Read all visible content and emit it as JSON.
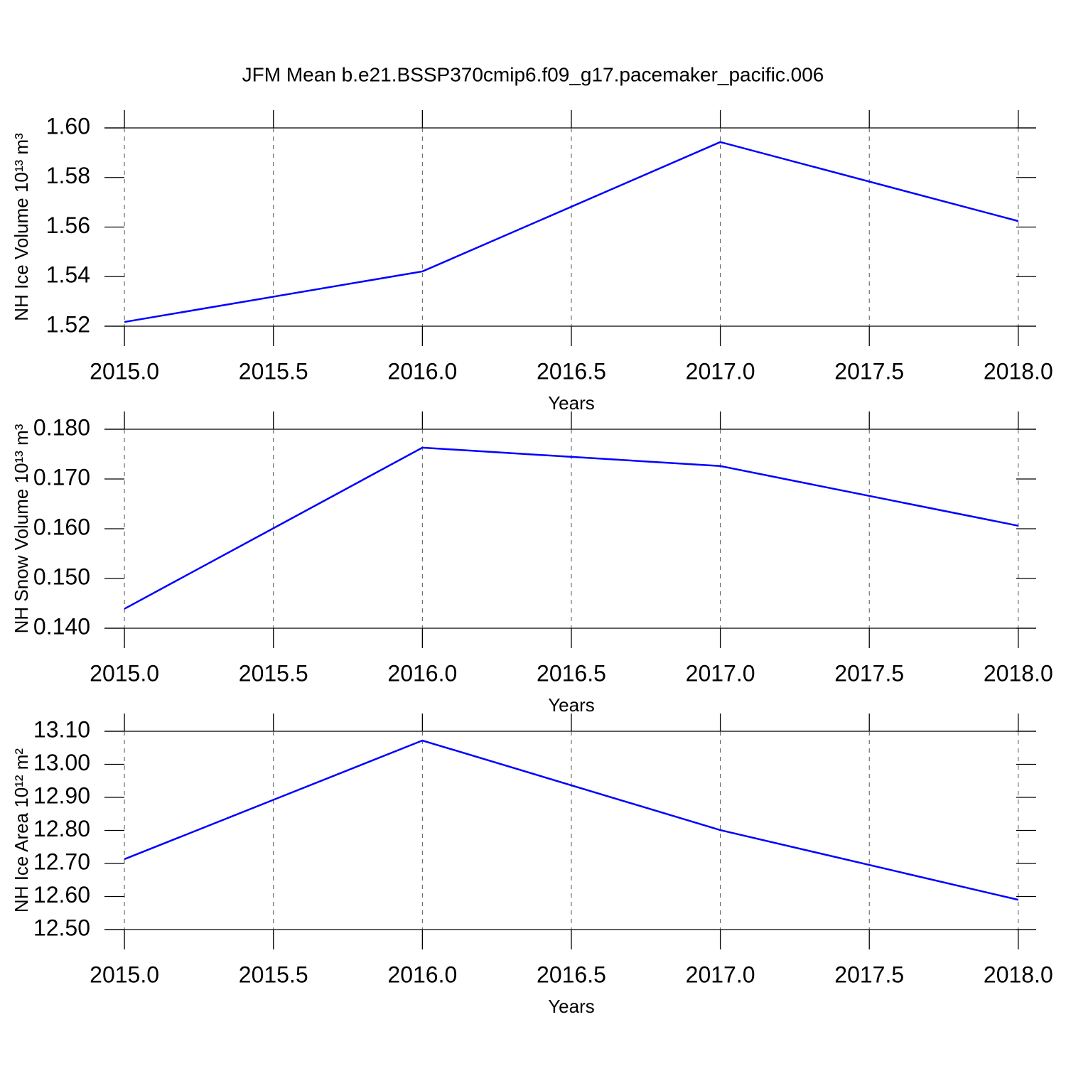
{
  "title": "JFM Mean b.e21.BSSP370cmip6.f09_g17.pacemaker_pacific.006",
  "chart_data": [
    {
      "type": "line",
      "x_label": "Years",
      "y_label": "NH Ice Volume 10¹³ m³",
      "x": [
        2015,
        2016,
        2017,
        2018
      ],
      "values": [
        1.5217,
        1.5421,
        1.5943,
        1.5624
      ],
      "color": "#0000ff",
      "xlim": [
        2014.933,
        2018.06
      ],
      "xticks": [
        {
          "value": 2015,
          "label": "2015.0"
        },
        {
          "value": 2015.5,
          "label": "2015.5"
        },
        {
          "value": 2016,
          "label": "2016.0"
        },
        {
          "value": 2016.5,
          "label": "2016.5"
        },
        {
          "value": 2017,
          "label": "2017.0"
        },
        {
          "value": 2017.5,
          "label": "2017.5"
        },
        {
          "value": 2018,
          "label": "2018.0"
        }
      ],
      "ylim": [
        1.52,
        1.6
      ],
      "yticks": [
        1.52,
        1.54,
        1.56,
        1.58,
        {
          "value": 1.6,
          "label": "1.60"
        }
      ],
      "xgrid": true
    },
    {
      "type": "line",
      "x_label": "Years",
      "y_label": "NH Snow Volume 10¹³ m³",
      "x": [
        2015,
        2016,
        2017,
        2018
      ],
      "values": [
        0.1439,
        0.1763,
        0.1726,
        0.1606
      ],
      "color": "#0000ff",
      "xlim": [
        2014.933,
        2018.06
      ],
      "xticks": [
        {
          "value": 2015,
          "label": "2015.0"
        },
        {
          "value": 2015.5,
          "label": "2015.5"
        },
        {
          "value": 2016,
          "label": "2016.0"
        },
        {
          "value": 2016.5,
          "label": "2016.5"
        },
        {
          "value": 2017,
          "label": "2017.0"
        },
        {
          "value": 2017.5,
          "label": "2017.5"
        },
        {
          "value": 2018,
          "label": "2018.0"
        }
      ],
      "ylim": [
        0.14,
        0.18
      ],
      "yticks": [
        {
          "value": 0.14,
          "label": "0.140"
        },
        {
          "value": 0.15,
          "label": "0.150"
        },
        {
          "value": 0.16,
          "label": "0.160"
        },
        {
          "value": 0.17,
          "label": "0.170"
        },
        {
          "value": 0.18,
          "label": "0.180"
        }
      ],
      "xgrid": true
    },
    {
      "type": "line",
      "x_label": "Years",
      "y_label": "NH Ice Area 10¹² m²",
      "x": [
        2015,
        2016,
        2017,
        2018
      ],
      "values": [
        12.713,
        13.072,
        12.801,
        12.59
      ],
      "color": "#0000ff",
      "xlim": [
        2014.933,
        2018.06
      ],
      "xticks": [
        {
          "value": 2015,
          "label": "2015.0"
        },
        {
          "value": 2015.5,
          "label": "2015.5"
        },
        {
          "value": 2016,
          "label": "2016.0"
        },
        {
          "value": 2016.5,
          "label": "2016.5"
        },
        {
          "value": 2017,
          "label": "2017.0"
        },
        {
          "value": 2017.5,
          "label": "2017.5"
        },
        {
          "value": 2018,
          "label": "2018.0"
        }
      ],
      "ylim": [
        12.5,
        13.1
      ],
      "yticks": [
        {
          "value": 12.5,
          "label": "12.50"
        },
        {
          "value": 12.6,
          "label": "12.60"
        },
        {
          "value": 12.7,
          "label": "12.70"
        },
        {
          "value": 12.8,
          "label": "12.80"
        },
        {
          "value": 12.9,
          "label": "12.90"
        },
        {
          "value": 13,
          "label": "13.00"
        },
        {
          "value": 13.1,
          "label": "13.10"
        }
      ],
      "xgrid": true
    }
  ]
}
